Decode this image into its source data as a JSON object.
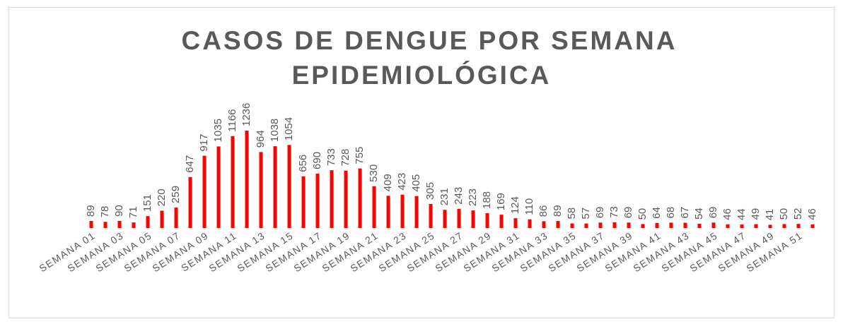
{
  "chart_data": {
    "type": "bar",
    "title": [
      "CASOS DE DENGUE POR SEMANA",
      "EPIDEMIOLÓGICA"
    ],
    "categories": [
      "SEMANA 01",
      null,
      "SEMANA 03",
      null,
      "SEMANA 05",
      null,
      "SEMANA 07",
      null,
      "SEMANA 09",
      null,
      "SEMANA 11",
      null,
      "SEMANA 13",
      null,
      "SEMANA 15",
      null,
      "SEMANA 17",
      null,
      "SEMANA 19",
      null,
      "SEMANA 21",
      null,
      "SEMANA 23",
      null,
      "SEMANA 25",
      null,
      "SEMANA 27",
      null,
      "SEMANA 29",
      null,
      "SEMANA 31",
      null,
      "SEMANA 33",
      null,
      "SEMANA 35",
      null,
      "SEMANA 37",
      null,
      "SEMANA 39",
      null,
      "SEMANA 41",
      null,
      "SEMANA 43",
      null,
      "SEMANA 45",
      null,
      "SEMANA 47",
      null,
      "SEMANA 49",
      null,
      "SEMANA 51",
      null
    ],
    "values": [
      89,
      78,
      90,
      71,
      151,
      220,
      259,
      647,
      917,
      1035,
      1166,
      1236,
      964,
      1038,
      1054,
      656,
      690,
      733,
      728,
      755,
      530,
      409,
      423,
      405,
      305,
      231,
      243,
      223,
      188,
      169,
      124,
      110,
      86,
      89,
      58,
      57,
      69,
      73,
      69,
      50,
      64,
      68,
      67,
      54,
      69,
      46,
      44,
      49,
      41,
      50,
      52,
      46
    ],
    "color": "#ff0000"
  }
}
